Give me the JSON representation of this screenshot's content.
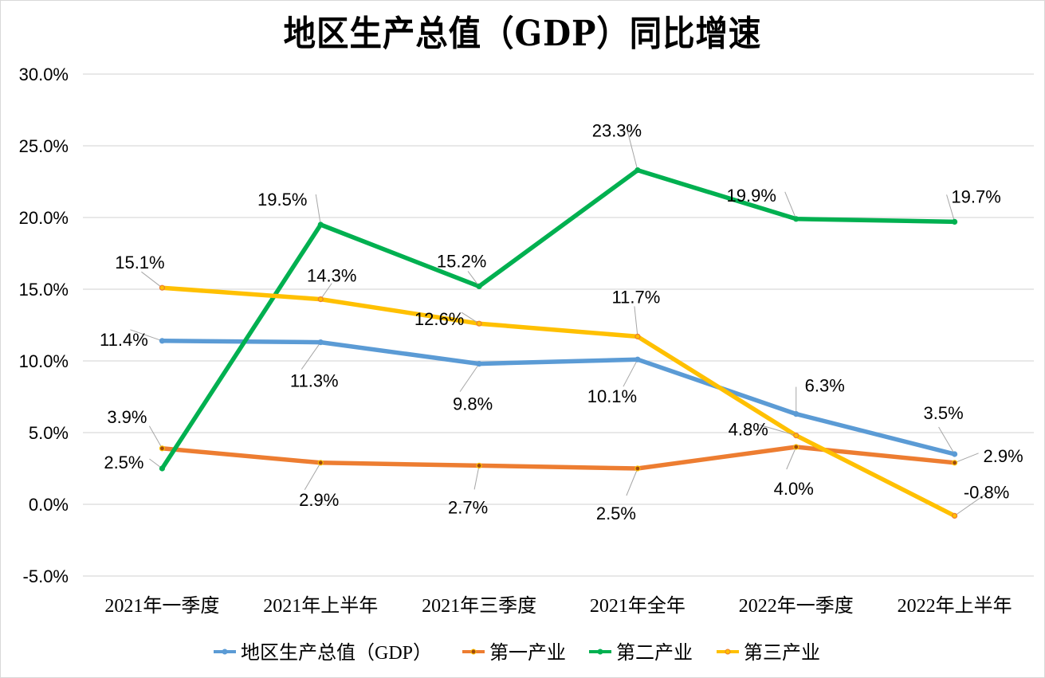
{
  "chart_data": {
    "type": "line",
    "title": "地区生产总值（GDP）同比增速",
    "xlabel": "",
    "ylabel": "",
    "categories": [
      "2021年一季度",
      "2021年上半年",
      "2021年三季度",
      "2021年全年",
      "2022年一季度",
      "2022年上半年"
    ],
    "ylim": [
      -5.0,
      30.0
    ],
    "yticks": [
      -5.0,
      0.0,
      5.0,
      10.0,
      15.0,
      20.0,
      25.0,
      30.0
    ],
    "ytick_labels": [
      "-5.0%",
      "0.0%",
      "5.0%",
      "10.0%",
      "15.0%",
      "20.0%",
      "25.0%",
      "30.0%"
    ],
    "grid": true,
    "legend_position": "bottom",
    "series": [
      {
        "name": "地区生产总值（GDP）",
        "color": "#5b9bd5",
        "values": [
          11.4,
          11.3,
          9.8,
          10.1,
          6.3,
          3.5
        ],
        "labels": [
          "11.4%",
          "11.3%",
          "9.8%",
          "10.1%",
          "6.3%",
          "3.5%"
        ]
      },
      {
        "name": "第一产业",
        "color": "#ed7d31",
        "values": [
          3.9,
          2.9,
          2.7,
          2.5,
          4.0,
          2.9
        ],
        "labels": [
          "3.9%",
          "2.9%",
          "2.7%",
          "2.5%",
          "4.0%",
          "2.9%"
        ]
      },
      {
        "name": "第二产业",
        "color": "#00b050",
        "values": [
          2.5,
          19.5,
          15.2,
          23.3,
          19.9,
          19.7
        ],
        "labels": [
          "2.5%",
          "19.5%",
          "15.2%",
          "23.3%",
          "19.9%",
          "19.7%"
        ]
      },
      {
        "name": "第三产业",
        "color": "#ffc000",
        "values": [
          15.1,
          14.3,
          12.6,
          11.7,
          4.8,
          -0.8
        ],
        "labels": [
          "15.1%",
          "14.3%",
          "12.6%",
          "11.7%",
          "4.8%",
          "-0.8%"
        ]
      }
    ]
  }
}
